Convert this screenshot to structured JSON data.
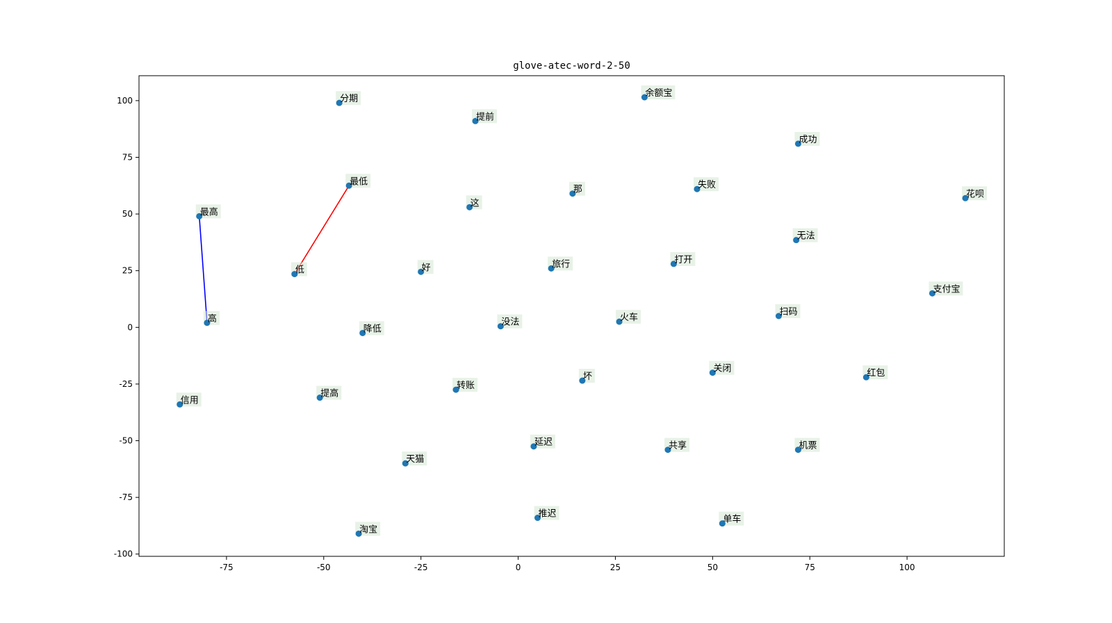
{
  "chart_data": {
    "type": "scatter",
    "title": "glove-atec-word-2-50",
    "xlabel": "",
    "ylabel": "",
    "xlim": [
      -97.5,
      125
    ],
    "ylim": [
      -101,
      111
    ],
    "xticks": [
      -75,
      -50,
      -25,
      0,
      25,
      50,
      75,
      100
    ],
    "yticks": [
      -100,
      -75,
      -50,
      -25,
      0,
      25,
      50,
      75,
      100
    ],
    "grid": false,
    "marker_color": "#1f77b4",
    "label_box_color": "#d5e8d4",
    "points": [
      {
        "label": "分期",
        "x": -46,
        "y": 99
      },
      {
        "label": "余额宝",
        "x": 32.5,
        "y": 101.5
      },
      {
        "label": "提前",
        "x": -11,
        "y": 91
      },
      {
        "label": "成功",
        "x": 72,
        "y": 81
      },
      {
        "label": "最低",
        "x": -43.5,
        "y": 62.5
      },
      {
        "label": "那",
        "x": 14,
        "y": 59
      },
      {
        "label": "失败",
        "x": 46,
        "y": 61
      },
      {
        "label": "花呗",
        "x": 115,
        "y": 57
      },
      {
        "label": "最高",
        "x": -82,
        "y": 49
      },
      {
        "label": "这",
        "x": -12.5,
        "y": 53
      },
      {
        "label": "无法",
        "x": 71.5,
        "y": 38.5
      },
      {
        "label": "低",
        "x": -57.5,
        "y": 23.5
      },
      {
        "label": "好",
        "x": -25,
        "y": 24.5
      },
      {
        "label": "旅行",
        "x": 8.5,
        "y": 26
      },
      {
        "label": "打开",
        "x": 40,
        "y": 28
      },
      {
        "label": "支付宝",
        "x": 106.5,
        "y": 15
      },
      {
        "label": "高",
        "x": -80,
        "y": 2
      },
      {
        "label": "降低",
        "x": -40,
        "y": -2.5
      },
      {
        "label": "没法",
        "x": -4.5,
        "y": 0.5
      },
      {
        "label": "火车",
        "x": 26,
        "y": 2.5
      },
      {
        "label": "扫码",
        "x": 67,
        "y": 5
      },
      {
        "label": "关闭",
        "x": 50,
        "y": -20
      },
      {
        "label": "红包",
        "x": 89.5,
        "y": -22
      },
      {
        "label": "坏",
        "x": 16.5,
        "y": -23.5
      },
      {
        "label": "转账",
        "x": -16,
        "y": -27.5
      },
      {
        "label": "信用",
        "x": -87,
        "y": -34
      },
      {
        "label": "提高",
        "x": -51,
        "y": -31
      },
      {
        "label": "延迟",
        "x": 4,
        "y": -52.5
      },
      {
        "label": "共享",
        "x": 38.5,
        "y": -54
      },
      {
        "label": "机票",
        "x": 72,
        "y": -54
      },
      {
        "label": "天猫",
        "x": -29,
        "y": -60
      },
      {
        "label": "推迟",
        "x": 5,
        "y": -84
      },
      {
        "label": "单车",
        "x": 52.5,
        "y": -86.5
      },
      {
        "label": "淘宝",
        "x": -41,
        "y": -91
      }
    ],
    "lines": [
      {
        "from": "最低",
        "to": "低",
        "color": "#ff0000"
      },
      {
        "from": "最高",
        "to": "高",
        "color": "#0000ff"
      }
    ]
  }
}
